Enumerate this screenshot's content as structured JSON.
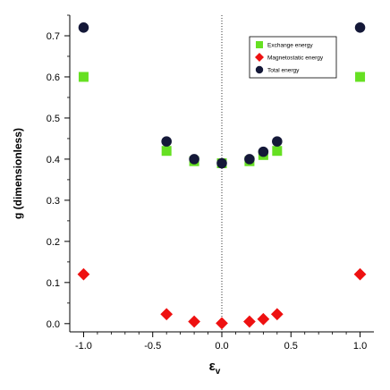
{
  "chart_data": {
    "type": "scatter",
    "xlabel": "ε",
    "xlabel_sub": "v",
    "ylabel": "g (dimensionless)",
    "xlim": [
      -1.1,
      1.1
    ],
    "ylim": [
      -0.02,
      0.75
    ],
    "xticks": [
      -1.0,
      -0.5,
      0.0,
      0.5,
      1.0
    ],
    "xtick_labels": [
      "-1.0",
      "-0.5",
      "0.0",
      "0.5",
      "1.0"
    ],
    "yticks": [
      0.0,
      0.1,
      0.2,
      0.3,
      0.4,
      0.5,
      0.6,
      0.7
    ],
    "ytick_labels": [
      "0.0",
      "0.1",
      "0.2",
      "0.3",
      "0.4",
      "0.5",
      "0.6",
      "0.7"
    ],
    "grid": false,
    "zero_line": "dotted vertical line at x = 0",
    "legend_position": "top-right",
    "series": [
      {
        "name": "Exchange energy",
        "marker": "square",
        "color": "#66e022",
        "x": [
          -1.0,
          -0.4,
          -0.2,
          0.0,
          0.2,
          0.3,
          0.4,
          1.0
        ],
        "y": [
          0.6,
          0.42,
          0.395,
          0.39,
          0.395,
          0.41,
          0.42,
          0.6
        ]
      },
      {
        "name": "Magnetostatic energy",
        "marker": "diamond",
        "color": "#ee1111",
        "x": [
          -1.0,
          -0.4,
          -0.2,
          0.0,
          0.2,
          0.3,
          0.4,
          1.0
        ],
        "y": [
          0.12,
          0.023,
          0.005,
          0.001,
          0.005,
          0.011,
          0.023,
          0.12
        ]
      },
      {
        "name": "Total energy",
        "marker": "circle",
        "color": "#141838",
        "x": [
          -1.0,
          -0.4,
          -0.2,
          0.0,
          0.2,
          0.3,
          0.4,
          1.0
        ],
        "y": [
          0.72,
          0.443,
          0.4,
          0.39,
          0.4,
          0.418,
          0.443,
          0.72
        ]
      }
    ]
  }
}
